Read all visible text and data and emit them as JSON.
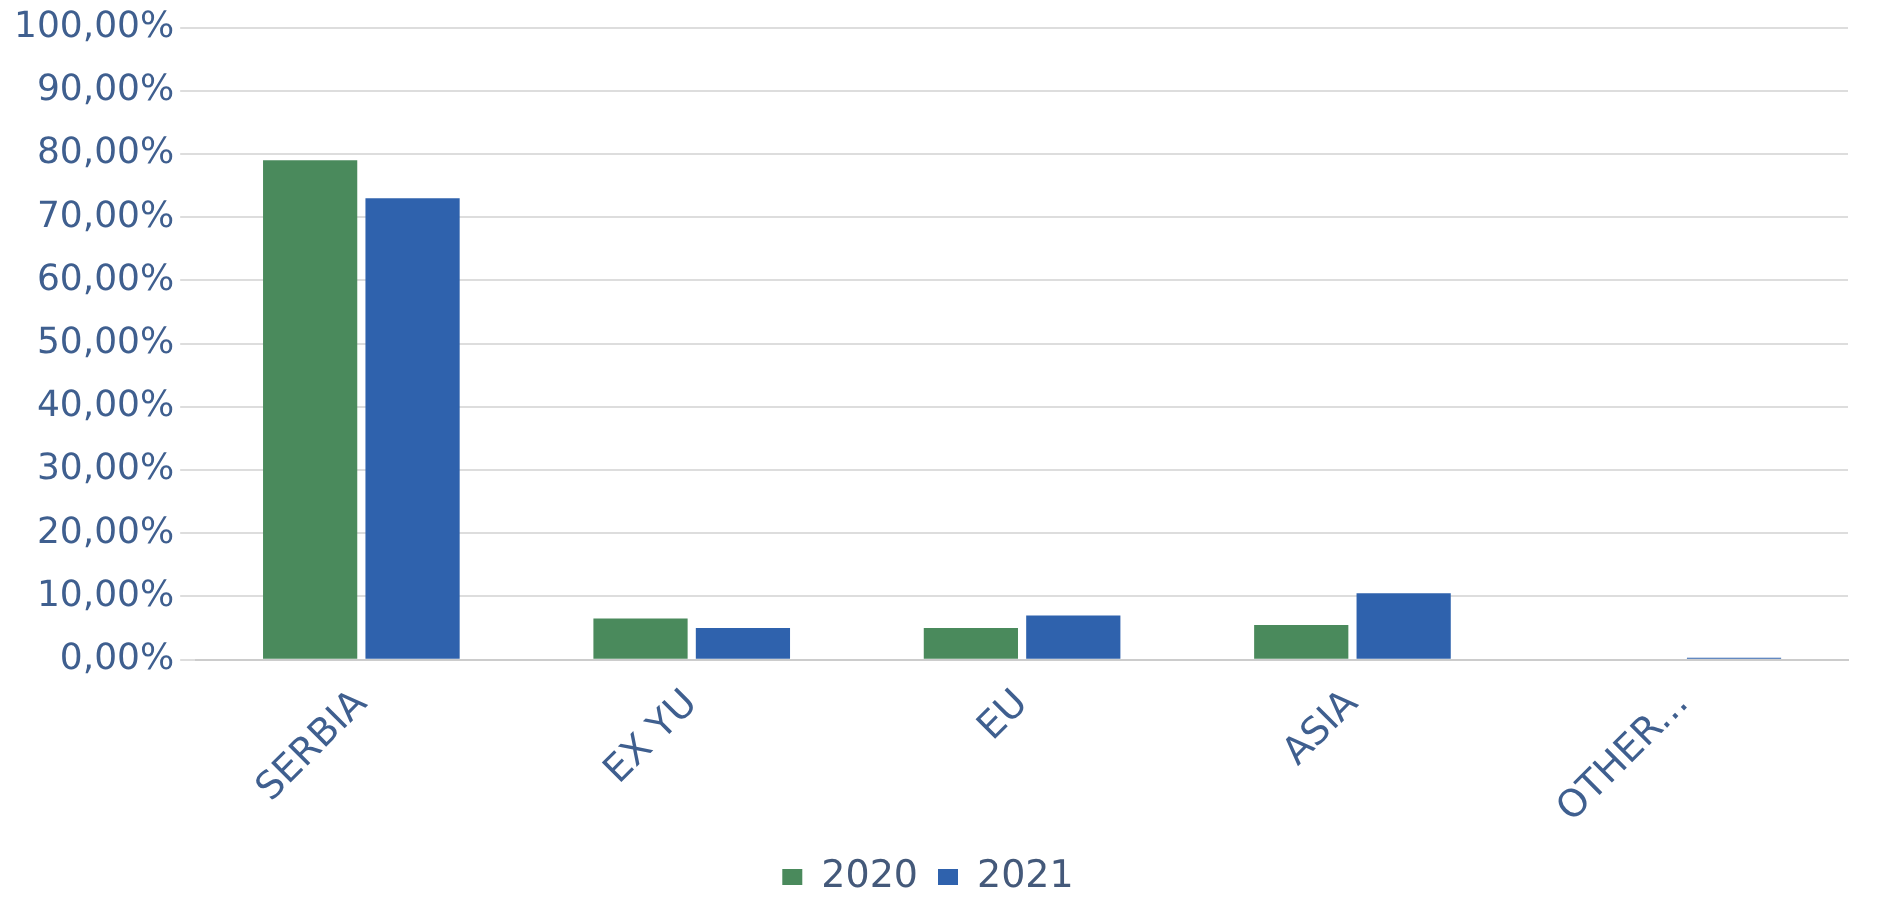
{
  "chart_data": {
    "type": "bar",
    "categories": [
      "SERBIA",
      "EX YU",
      "EU",
      "ASIA",
      "OTHER..."
    ],
    "series": [
      {
        "name": "2020",
        "color": "#4a8a5c",
        "values": [
          79,
          6.5,
          5,
          5.5,
          0
        ]
      },
      {
        "name": "2021",
        "color": "#2f62ad",
        "values": [
          73,
          5,
          7,
          10.5,
          0.3
        ]
      }
    ],
    "ylim": [
      0,
      100
    ],
    "yticks": [
      {
        "value": 0,
        "label": "0,00%"
      },
      {
        "value": 10,
        "label": "10,00%"
      },
      {
        "value": 20,
        "label": "20,00%"
      },
      {
        "value": 30,
        "label": "30,00%"
      },
      {
        "value": 40,
        "label": "40,00%"
      },
      {
        "value": 50,
        "label": "50,00%"
      },
      {
        "value": 60,
        "label": "60,00%"
      },
      {
        "value": 70,
        "label": "70,00%"
      },
      {
        "value": 80,
        "label": "80,00%"
      },
      {
        "value": 90,
        "label": "90,00%"
      },
      {
        "value": 100,
        "label": "100,00%"
      }
    ],
    "grid": "y",
    "legend": "bottom"
  }
}
